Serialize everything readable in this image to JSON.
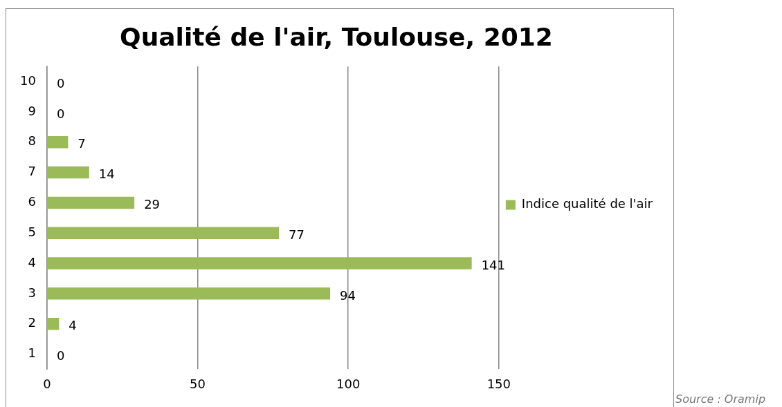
{
  "chart_data": {
    "type": "bar",
    "orientation": "horizontal",
    "title": "Qualité de l'air, Toulouse, 2012",
    "categories": [
      "10",
      "9",
      "8",
      "7",
      "6",
      "5",
      "4",
      "3",
      "2",
      "1"
    ],
    "series": [
      {
        "name": "Indice qualité de l'air",
        "color": "#9bbb59",
        "values": [
          0,
          0,
          7,
          14,
          29,
          77,
          141,
          94,
          4,
          0
        ]
      }
    ],
    "xlim": [
      0,
      150
    ],
    "xticks": [
      0,
      50,
      100,
      150
    ],
    "grid": "x",
    "legend": "right",
    "data_labels": true,
    "annotations": [
      "Source : Oramip"
    ]
  }
}
